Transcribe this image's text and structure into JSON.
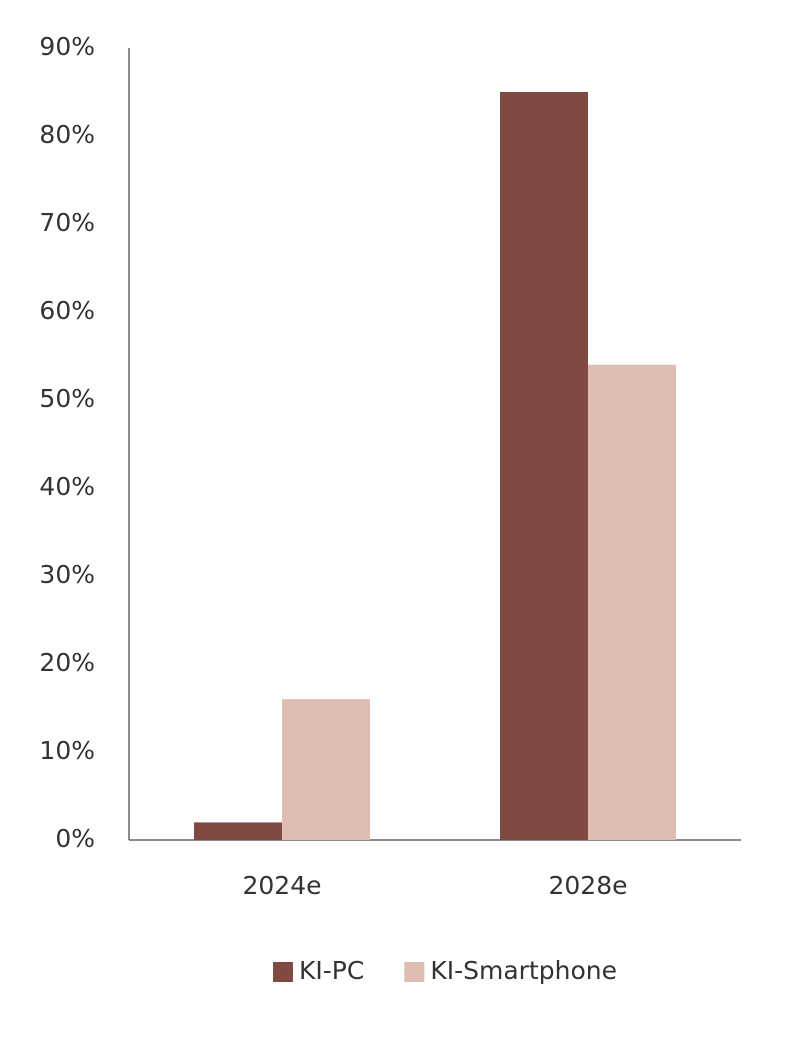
{
  "chart_data": {
    "type": "bar",
    "categories": [
      "2024e",
      "2028e"
    ],
    "series": [
      {
        "name": "KI-PC",
        "color": "#7f4a42",
        "values": [
          2,
          85
        ]
      },
      {
        "name": "KI-Smartphone",
        "color": "#dfbcb2",
        "values": [
          16,
          54
        ]
      }
    ],
    "ylim": [
      0,
      90
    ],
    "yticks": [
      {
        "value": 0,
        "label": "0%"
      },
      {
        "value": 10,
        "label": "10%"
      },
      {
        "value": 20,
        "label": "20%"
      },
      {
        "value": 30,
        "label": "30%"
      },
      {
        "value": 40,
        "label": "40%"
      },
      {
        "value": 50,
        "label": "50%"
      },
      {
        "value": 60,
        "label": "60%"
      },
      {
        "value": 70,
        "label": "70%"
      },
      {
        "value": 80,
        "label": "80%"
      },
      {
        "value": 90,
        "label": "90%"
      }
    ],
    "grid": false,
    "legend": "bottom"
  }
}
